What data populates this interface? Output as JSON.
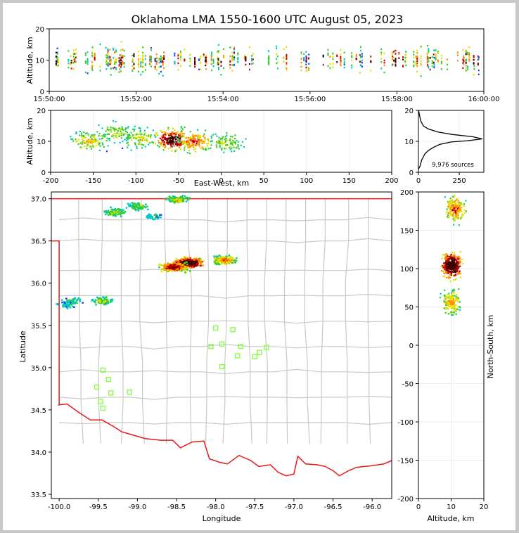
{
  "figure": {
    "title": "Oklahoma LMA 1550-1600 UTC August 05, 2023",
    "source_count_label": "9,976 sources"
  },
  "colors": {
    "boundary": "#e8171c",
    "counties": "#c8c8c8",
    "stations": "#7cff3c",
    "density_scale": [
      "#1a3cff",
      "#00c8c8",
      "#2ecc2e",
      "#e0e000",
      "#ff8c00",
      "#c80000",
      "#400000"
    ]
  },
  "chart_data": [
    {
      "type": "heatmap",
      "panel": "altitude-time",
      "ylabel": "Altitude, km",
      "ylim": [
        0,
        20
      ],
      "yticks": [
        "0",
        "10",
        "20"
      ],
      "xticks": [
        "15:50:00",
        "15:52:00",
        "15:54:00",
        "15:56:00",
        "15:58:00",
        "16:00:00"
      ],
      "xlim": [
        "15:50:00",
        "16:00:00"
      ],
      "peak_altitude_km": 10
    },
    {
      "type": "heatmap",
      "panel": "altitude-east-west",
      "xlabel": "East-West, km",
      "ylabel": "Altitude, km",
      "xlim": [
        -200,
        200
      ],
      "ylim": [
        0,
        20
      ],
      "xticks": [
        "-200",
        "-150",
        "-100",
        "-50",
        "0",
        "50",
        "100",
        "150",
        "200"
      ],
      "yticks": [
        "0",
        "10",
        "20"
      ],
      "clusters": [
        {
          "x": -155,
          "alt": 10,
          "weight": 0.5
        },
        {
          "x": -125,
          "alt": 13,
          "weight": 0.4
        },
        {
          "x": -95,
          "alt": 11,
          "weight": 0.45
        },
        {
          "x": -58,
          "alt": 10.5,
          "weight": 1.0
        },
        {
          "x": -32,
          "alt": 10,
          "weight": 0.7
        },
        {
          "x": 5,
          "alt": 9.5,
          "weight": 0.4
        }
      ]
    },
    {
      "type": "line",
      "panel": "altitude-histogram",
      "xticks": [
        "0",
        "250"
      ],
      "yticks": [
        "0",
        "10",
        "20"
      ],
      "ylim": [
        0,
        20
      ],
      "xlim": [
        0,
        400
      ],
      "series": [
        {
          "x": [
            0,
            10,
            15,
            20,
            30,
            40,
            60,
            90,
            130,
            200,
            300,
            390,
            330,
            210,
            120,
            60,
            30,
            15,
            8,
            3,
            0
          ],
          "y": [
            1,
            2,
            3,
            4,
            5,
            6,
            7,
            8,
            9,
            9.8,
            10.2,
            10.8,
            11.5,
            12.2,
            13,
            14,
            15,
            16.5,
            18,
            19.5,
            20
          ]
        }
      ]
    },
    {
      "type": "heatmap",
      "panel": "plan-view",
      "xlabel": "Longitude",
      "ylabel": "Latitude",
      "xlim": [
        -100.1,
        -95.75
      ],
      "ylim": [
        33.45,
        37.08
      ],
      "xticks": [
        "-100.0",
        "-99.5",
        "-99.0",
        "-98.5",
        "-98.0",
        "-97.5",
        "-97.0",
        "-96.5",
        "-96.0"
      ],
      "yticks": [
        "33.5",
        "34.0",
        "34.5",
        "35.0",
        "35.5",
        "36.0",
        "36.5",
        "37.0"
      ],
      "clusters": [
        {
          "lon": -98.35,
          "lat": 36.25,
          "weight": 1.0
        },
        {
          "lon": -98.55,
          "lat": 36.2,
          "weight": 0.8
        },
        {
          "lon": -97.9,
          "lat": 36.28,
          "weight": 0.6
        },
        {
          "lon": -98.5,
          "lat": 37.0,
          "weight": 0.4
        },
        {
          "lon": -99.3,
          "lat": 36.85,
          "weight": 0.35
        },
        {
          "lon": -99.0,
          "lat": 36.92,
          "weight": 0.3
        },
        {
          "lon": -99.45,
          "lat": 35.8,
          "weight": 0.35
        },
        {
          "lon": -99.85,
          "lat": 35.8,
          "weight": 0.2
        },
        {
          "lon": -98.8,
          "lat": 36.8,
          "weight": 0.15
        },
        {
          "lon": -99.9,
          "lat": 35.75,
          "weight": 0.15
        }
      ],
      "stations": [
        {
          "lon": -98.0,
          "lat": 35.47
        },
        {
          "lon": -97.78,
          "lat": 35.45
        },
        {
          "lon": -98.06,
          "lat": 35.25
        },
        {
          "lon": -97.92,
          "lat": 35.28
        },
        {
          "lon": -97.68,
          "lat": 35.25
        },
        {
          "lon": -97.35,
          "lat": 35.24
        },
        {
          "lon": -97.72,
          "lat": 35.14
        },
        {
          "lon": -97.5,
          "lat": 35.13
        },
        {
          "lon": -97.44,
          "lat": 35.18
        },
        {
          "lon": -97.92,
          "lat": 35.01
        },
        {
          "lon": -99.44,
          "lat": 34.97
        },
        {
          "lon": -99.37,
          "lat": 34.86
        },
        {
          "lon": -99.52,
          "lat": 34.77
        },
        {
          "lon": -99.34,
          "lat": 34.7
        },
        {
          "lon": -99.1,
          "lat": 34.71
        },
        {
          "lon": -99.47,
          "lat": 34.6
        },
        {
          "lon": -99.44,
          "lat": 34.52
        }
      ]
    },
    {
      "type": "heatmap",
      "panel": "north-south-altitude",
      "xlabel": "Altitude, km",
      "ylabel": "North-South, km",
      "xlim": [
        0,
        20
      ],
      "ylim": [
        -200,
        200
      ],
      "xticks": [
        "0",
        "10",
        "20"
      ],
      "yticks": [
        "-200",
        "-150",
        "-100",
        "-50",
        "0",
        "50",
        "100",
        "150",
        "200"
      ],
      "clusters": [
        {
          "alt": 11,
          "y": 178,
          "weight": 0.6
        },
        {
          "alt": 10,
          "y": 105,
          "weight": 1.0
        },
        {
          "alt": 10,
          "y": 57,
          "weight": 0.5
        }
      ]
    }
  ]
}
